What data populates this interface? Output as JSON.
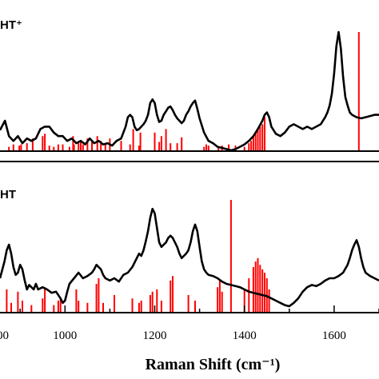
{
  "chart_data": [
    {
      "type": "line",
      "label": "HT⁺",
      "xlim": [
        855,
        1700
      ],
      "xticks": [
        1000,
        1200,
        1400,
        1600
      ],
      "ylim": [
        0,
        1.0
      ],
      "series": [
        {
          "kind": "line",
          "color": "#000000",
          "x": [
            855,
            866,
            875,
            885,
            895,
            905,
            915,
            925,
            935,
            945,
            955,
            965,
            975,
            985,
            995,
            1005,
            1015,
            1025,
            1035,
            1045,
            1055,
            1065,
            1075,
            1085,
            1095,
            1105,
            1115,
            1125,
            1135,
            1140,
            1145,
            1150,
            1155,
            1160,
            1165,
            1170,
            1175,
            1180,
            1185,
            1190,
            1195,
            1200,
            1205,
            1210,
            1215,
            1220,
            1225,
            1230,
            1235,
            1240,
            1245,
            1250,
            1255,
            1260,
            1265,
            1270,
            1275,
            1280,
            1285,
            1290,
            1295,
            1300,
            1305,
            1310,
            1320,
            1330,
            1340,
            1350,
            1360,
            1370,
            1380,
            1390,
            1400,
            1410,
            1420,
            1430,
            1440,
            1445,
            1450,
            1455,
            1460,
            1470,
            1480,
            1490,
            1500,
            1510,
            1520,
            1530,
            1540,
            1550,
            1560,
            1570,
            1580,
            1585,
            1590,
            1595,
            1600,
            1605,
            1610,
            1615,
            1620,
            1625,
            1630,
            1635,
            1640,
            1650,
            1660,
            1670,
            1680,
            1690,
            1700
          ],
          "y": [
            0.17,
            0.25,
            0.12,
            0.08,
            0.12,
            0.06,
            0.1,
            0.08,
            0.1,
            0.18,
            0.2,
            0.2,
            0.15,
            0.12,
            0.12,
            0.08,
            0.1,
            0.06,
            0.08,
            0.05,
            0.1,
            0.06,
            0.08,
            0.05,
            0.06,
            0.04,
            0.08,
            0.1,
            0.2,
            0.28,
            0.3,
            0.28,
            0.2,
            0.17,
            0.18,
            0.2,
            0.22,
            0.25,
            0.3,
            0.4,
            0.43,
            0.4,
            0.3,
            0.24,
            0.25,
            0.3,
            0.33,
            0.36,
            0.37,
            0.34,
            0.3,
            0.27,
            0.25,
            0.23,
            0.25,
            0.3,
            0.33,
            0.37,
            0.4,
            0.42,
            0.35,
            0.27,
            0.21,
            0.15,
            0.08,
            0.06,
            0.03,
            0.02,
            0.01,
            0.0,
            0.01,
            0.03,
            0.05,
            0.08,
            0.12,
            0.18,
            0.25,
            0.3,
            0.32,
            0.28,
            0.2,
            0.14,
            0.12,
            0.15,
            0.2,
            0.22,
            0.2,
            0.18,
            0.2,
            0.18,
            0.2,
            0.22,
            0.28,
            0.32,
            0.38,
            0.48,
            0.65,
            0.88,
            1.0,
            0.86,
            0.62,
            0.45,
            0.38,
            0.32,
            0.3,
            0.28,
            0.27,
            0.28,
            0.29,
            0.3,
            0.3
          ]
        },
        {
          "kind": "stick",
          "color": "#ff0000",
          "x": [
            875,
            885,
            898,
            902,
            915,
            928,
            950,
            955,
            965,
            975,
            985,
            995,
            1010,
            1018,
            1020,
            1030,
            1035,
            1040,
            1050,
            1060,
            1072,
            1080,
            1090,
            1100,
            1125,
            1145,
            1152,
            1165,
            1168,
            1200,
            1210,
            1215,
            1225,
            1235,
            1250,
            1260,
            1310,
            1315,
            1320,
            1342,
            1350,
            1365,
            1380,
            1400,
            1410,
            1415,
            1420,
            1425,
            1430,
            1435,
            1440,
            1445,
            1655
          ],
          "y": [
            0.03,
            0.05,
            0.04,
            0.05,
            0.06,
            0.1,
            0.12,
            0.14,
            0.04,
            0.03,
            0.05,
            0.05,
            0.03,
            0.12,
            0.05,
            0.06,
            0.08,
            0.05,
            0.1,
            0.07,
            0.12,
            0.08,
            0.06,
            0.1,
            0.08,
            0.05,
            0.18,
            0.04,
            0.15,
            0.15,
            0.07,
            0.12,
            0.18,
            0.06,
            0.06,
            0.11,
            0.03,
            0.05,
            0.04,
            0.03,
            0.04,
            0.05,
            0.04,
            0.03,
            0.06,
            0.08,
            0.12,
            0.15,
            0.18,
            0.2,
            0.22,
            0.28,
            1.0
          ]
        }
      ]
    },
    {
      "type": "line",
      "label": "HT",
      "xlim": [
        855,
        1700
      ],
      "xticks": [
        1000,
        1200,
        1400,
        1600
      ],
      "xlabel": "Raman Shift (cm⁻¹)",
      "ylim": [
        0,
        1.0
      ],
      "series": [
        {
          "kind": "line",
          "color": "#000000",
          "x": [
            855,
            865,
            870,
            875,
            880,
            885,
            890,
            895,
            900,
            905,
            910,
            915,
            920,
            925,
            930,
            935,
            940,
            950,
            960,
            970,
            980,
            990,
            995,
            1000,
            1005,
            1010,
            1020,
            1030,
            1040,
            1050,
            1060,
            1065,
            1070,
            1075,
            1080,
            1085,
            1090,
            1100,
            1110,
            1120,
            1130,
            1140,
            1150,
            1160,
            1165,
            1170,
            1175,
            1180,
            1185,
            1190,
            1195,
            1200,
            1205,
            1210,
            1215,
            1220,
            1225,
            1230,
            1235,
            1240,
            1245,
            1250,
            1255,
            1260,
            1265,
            1270,
            1275,
            1280,
            1285,
            1290,
            1295,
            1300,
            1305,
            1310,
            1315,
            1320,
            1330,
            1340,
            1350,
            1360,
            1370,
            1380,
            1390,
            1400,
            1410,
            1420,
            1430,
            1440,
            1450,
            1460,
            1470,
            1480,
            1490,
            1500,
            1510,
            1520,
            1530,
            1540,
            1550,
            1560,
            1570,
            1580,
            1590,
            1600,
            1610,
            1620,
            1630,
            1635,
            1640,
            1645,
            1650,
            1655,
            1660,
            1665,
            1670,
            1680,
            1690,
            1700
          ],
          "y": [
            0.3,
            0.45,
            0.55,
            0.6,
            0.52,
            0.4,
            0.33,
            0.35,
            0.42,
            0.38,
            0.28,
            0.2,
            0.24,
            0.22,
            0.2,
            0.25,
            0.2,
            0.22,
            0.2,
            0.17,
            0.18,
            0.12,
            0.08,
            0.1,
            0.18,
            0.25,
            0.3,
            0.35,
            0.3,
            0.32,
            0.35,
            0.38,
            0.42,
            0.4,
            0.38,
            0.33,
            0.3,
            0.28,
            0.3,
            0.27,
            0.33,
            0.35,
            0.4,
            0.48,
            0.52,
            0.5,
            0.55,
            0.63,
            0.72,
            0.84,
            0.92,
            0.88,
            0.75,
            0.62,
            0.58,
            0.6,
            0.62,
            0.66,
            0.68,
            0.66,
            0.62,
            0.58,
            0.52,
            0.48,
            0.5,
            0.52,
            0.55,
            0.62,
            0.72,
            0.78,
            0.72,
            0.58,
            0.45,
            0.38,
            0.35,
            0.33,
            0.32,
            0.3,
            0.27,
            0.25,
            0.24,
            0.23,
            0.22,
            0.2,
            0.18,
            0.17,
            0.16,
            0.15,
            0.14,
            0.12,
            0.1,
            0.08,
            0.06,
            0.05,
            0.08,
            0.12,
            0.18,
            0.22,
            0.24,
            0.23,
            0.25,
            0.28,
            0.3,
            0.3,
            0.32,
            0.35,
            0.42,
            0.48,
            0.55,
            0.6,
            0.64,
            0.58,
            0.48,
            0.4,
            0.35,
            0.32,
            0.3,
            0.28
          ]
        },
        {
          "kind": "stick",
          "color": "#ff0000",
          "x": [
            870,
            880,
            895,
            905,
            925,
            950,
            955,
            975,
            985,
            990,
            1025,
            1030,
            1050,
            1070,
            1075,
            1085,
            1110,
            1150,
            1165,
            1170,
            1190,
            1195,
            1205,
            1215,
            1235,
            1240,
            1275,
            1290,
            1340,
            1345,
            1350,
            1370,
            1400,
            1410,
            1420,
            1425,
            1430,
            1435,
            1440,
            1445,
            1450,
            1455
          ],
          "y": [
            0.2,
            0.08,
            0.18,
            0.1,
            0.06,
            0.12,
            0.22,
            0.06,
            0.1,
            0.12,
            0.2,
            0.1,
            0.08,
            0.25,
            0.3,
            0.08,
            0.15,
            0.12,
            0.08,
            0.1,
            0.15,
            0.18,
            0.2,
            0.1,
            0.28,
            0.32,
            0.15,
            0.1,
            0.22,
            0.28,
            0.18,
            1.0,
            0.2,
            0.3,
            0.4,
            0.45,
            0.48,
            0.42,
            0.38,
            0.35,
            0.3,
            0.2
          ]
        }
      ]
    }
  ]
}
